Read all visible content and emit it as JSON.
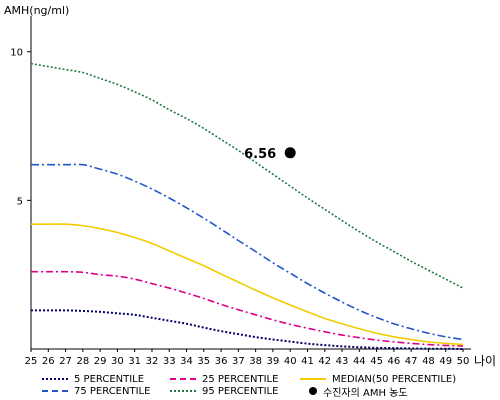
{
  "chart_data": {
    "type": "line",
    "ylabel": "AMH(ng/ml)",
    "xlabel": "나이",
    "x": [
      25,
      26,
      27,
      28,
      29,
      30,
      31,
      32,
      33,
      34,
      35,
      36,
      37,
      38,
      39,
      40,
      41,
      42,
      43,
      44,
      45,
      46,
      47,
      48,
      49,
      50
    ],
    "x_ticks": [
      "25",
      "26",
      "27",
      "28",
      "29",
      "30",
      "31",
      "32",
      "33",
      "34",
      "35",
      "36",
      "37",
      "38",
      "39",
      "40",
      "41",
      "42",
      "43",
      "44",
      "45",
      "46",
      "47",
      "48",
      "49",
      "50"
    ],
    "ylim": [
      0,
      11
    ],
    "y_ticks": [
      5,
      10
    ],
    "y_tick_labels": [
      "5",
      "10"
    ],
    "series": [
      {
        "name": "5 PERCENTILE",
        "color": "#000066",
        "dash": "2,2",
        "width": 2,
        "values": [
          1.3,
          1.3,
          1.3,
          1.28,
          1.25,
          1.2,
          1.15,
          1.05,
          0.95,
          0.85,
          0.72,
          0.6,
          0.5,
          0.4,
          0.32,
          0.25,
          0.18,
          0.13,
          0.09,
          0.06,
          0.04,
          0.03,
          0.02,
          0.01,
          0.01,
          0.0
        ]
      },
      {
        "name": "25 PERCENTILE",
        "color": "#dd0088",
        "dash": "7,3,2,3",
        "width": 1.6,
        "values": [
          2.6,
          2.6,
          2.6,
          2.58,
          2.5,
          2.45,
          2.35,
          2.2,
          2.05,
          1.88,
          1.7,
          1.5,
          1.32,
          1.15,
          0.98,
          0.83,
          0.7,
          0.58,
          0.47,
          0.38,
          0.3,
          0.24,
          0.19,
          0.15,
          0.12,
          0.1
        ]
      },
      {
        "name": "MEDIAN(50 PERCENTILE)",
        "color": "#f2cc00",
        "dash": "",
        "width": 1.6,
        "values": [
          4.2,
          4.2,
          4.2,
          4.15,
          4.05,
          3.92,
          3.75,
          3.55,
          3.3,
          3.05,
          2.8,
          2.52,
          2.25,
          1.98,
          1.72,
          1.48,
          1.25,
          1.03,
          0.85,
          0.68,
          0.53,
          0.41,
          0.32,
          0.24,
          0.19,
          0.15
        ]
      },
      {
        "name": "75 PERCENTILE",
        "color": "#2255cc",
        "dash": "8,3,2,3",
        "width": 1.6,
        "values": [
          6.2,
          6.2,
          6.2,
          6.2,
          6.05,
          5.88,
          5.65,
          5.38,
          5.08,
          4.75,
          4.4,
          4.03,
          3.65,
          3.28,
          2.9,
          2.55,
          2.2,
          1.88,
          1.58,
          1.3,
          1.06,
          0.85,
          0.68,
          0.53,
          0.41,
          0.32
        ]
      },
      {
        "name": "95 PERCENTILE",
        "color": "#227744",
        "dash": "2,2",
        "width": 1.6,
        "values": [
          9.6,
          9.5,
          9.4,
          9.3,
          9.1,
          8.9,
          8.65,
          8.38,
          8.05,
          7.75,
          7.42,
          7.05,
          6.68,
          6.28,
          5.88,
          5.48,
          5.08,
          4.7,
          4.32,
          3.95,
          3.6,
          3.28,
          2.95,
          2.65,
          2.35,
          2.05
        ]
      }
    ],
    "patient": {
      "name": "수진자의 AMH 농도",
      "x": 40,
      "y": 6.6,
      "label": "6.56",
      "color": "#000000"
    }
  },
  "legend": {
    "items": [
      {
        "key": "p5",
        "label": "5 PERCENTILE"
      },
      {
        "key": "p25",
        "label": "25 PERCENTILE"
      },
      {
        "key": "median",
        "label": "MEDIAN(50 PERCENTILE)"
      },
      {
        "key": "p75",
        "label": "75 PERCENTILE"
      },
      {
        "key": "p95",
        "label": "95 PERCENTILE"
      },
      {
        "key": "patient",
        "label": "수진자의 AMH 농도"
      }
    ]
  }
}
